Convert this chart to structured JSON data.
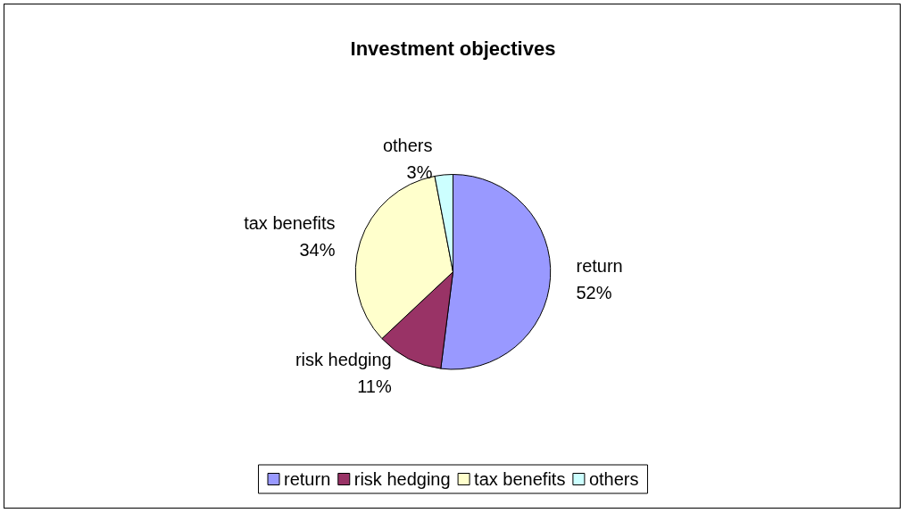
{
  "chart_data": {
    "type": "pie",
    "title": "Investment objectives",
    "categories": [
      "return",
      "risk hedging",
      "tax benefits",
      "others"
    ],
    "values": [
      52,
      11,
      34,
      3
    ],
    "value_labels": [
      "52%",
      "11%",
      "34%",
      "3%"
    ],
    "colors": [
      "#9999ff",
      "#993366",
      "#ffffcc",
      "#ccffff"
    ],
    "legend": "bottom"
  }
}
